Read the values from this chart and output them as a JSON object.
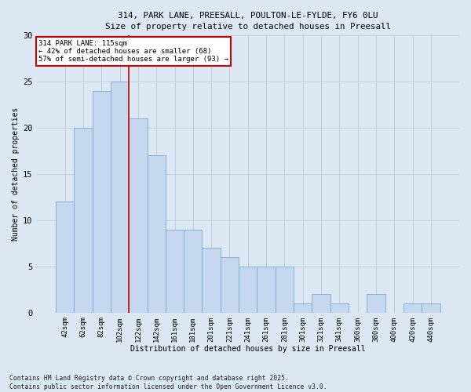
{
  "title_line1": "314, PARK LANE, PREESALL, POULTON-LE-FYLDE, FY6 0LU",
  "title_line2": "Size of property relative to detached houses in Preesall",
  "xlabel": "Distribution of detached houses by size in Preesall",
  "ylabel": "Number of detached properties",
  "footnote": "Contains HM Land Registry data © Crown copyright and database right 2025.\nContains public sector information licensed under the Open Government Licence v3.0.",
  "categories": [
    "42sqm",
    "62sqm",
    "82sqm",
    "102sqm",
    "122sqm",
    "142sqm",
    "161sqm",
    "181sqm",
    "201sqm",
    "221sqm",
    "241sqm",
    "261sqm",
    "281sqm",
    "301sqm",
    "321sqm",
    "341sqm",
    "360sqm",
    "380sqm",
    "400sqm",
    "420sqm",
    "440sqm"
  ],
  "values": [
    12,
    20,
    24,
    25,
    21,
    17,
    9,
    9,
    7,
    6,
    5,
    5,
    5,
    1,
    2,
    1,
    0,
    2,
    0,
    1,
    1
  ],
  "bar_color": "#c5d8f0",
  "bar_edge_color": "#7aabcf",
  "background_color": "#dce9f5",
  "grid_color": "#bfcfdf",
  "vline_x_index": 3,
  "vline_color": "#cc0000",
  "annotation_title": "314 PARK LANE: 115sqm",
  "annotation_line1": "← 42% of detached houses are smaller (68)",
  "annotation_line2": "57% of semi-detached houses are larger (93) →",
  "annotation_box_color": "#ffffff",
  "annotation_box_edge_color": "#cc0000",
  "ylim": [
    0,
    30
  ],
  "yticks": [
    0,
    5,
    10,
    15,
    20,
    25,
    30
  ]
}
